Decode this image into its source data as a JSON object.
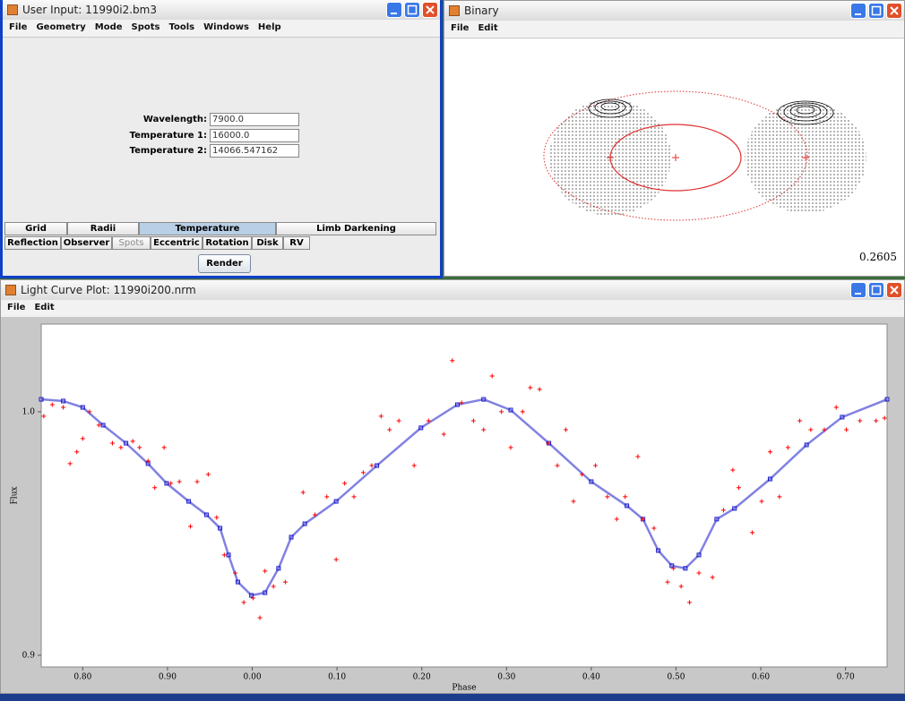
{
  "windows": {
    "user_input": {
      "title": "User Input: 11990i2.bm3",
      "menu": [
        "File",
        "Geometry",
        "Mode",
        "Spots",
        "Tools",
        "Windows",
        "Help"
      ],
      "fields": [
        {
          "label": "Wavelength:",
          "value": "7900.0"
        },
        {
          "label": "Temperature 1:",
          "value": "16000.0"
        },
        {
          "label": "Temperature 2:",
          "value": "14066.547162"
        }
      ],
      "tabs_row1": [
        "Grid",
        "Radii",
        "Temperature",
        "Limb Darkening"
      ],
      "tabs_row2": [
        "Reflection",
        "Observer",
        "Spots",
        "Eccentric",
        "Rotation",
        "Disk",
        "RV"
      ],
      "button": "Render"
    },
    "binary": {
      "title": "Binary",
      "menu": [
        "File",
        "Edit"
      ],
      "readout": 0.2605
    },
    "light_curve": {
      "title": "Light Curve Plot: 11990i200.nrm",
      "menu": [
        "File",
        "Edit"
      ]
    }
  },
  "chart_data": {
    "type": "scatter",
    "xlabel": "Phase",
    "ylabel": "Flux",
    "xlim": [
      0.751,
      1.749
    ],
    "ylim": [
      0.8952,
      1.036
    ],
    "xticks": [
      {
        "value": 0.8,
        "label": "0.80"
      },
      {
        "value": 0.9,
        "label": "0.90"
      },
      {
        "value": 1.0,
        "label": "0.00"
      },
      {
        "value": 1.1,
        "label": "0.10"
      },
      {
        "value": 1.2,
        "label": "0.20"
      },
      {
        "value": 1.3,
        "label": "0.30"
      },
      {
        "value": 1.4,
        "label": "0.40"
      },
      {
        "value": 1.5,
        "label": "0.50"
      },
      {
        "value": 1.6,
        "label": "0.60"
      },
      {
        "value": 1.7,
        "label": "0.70"
      }
    ],
    "yticks": [
      {
        "value": 0.9,
        "label": "0.9"
      },
      {
        "value": 1,
        "label": "1.0"
      }
    ],
    "series": [
      {
        "color": "#1a1acc",
        "marker": "square",
        "x": [
          0.751,
          0.777,
          0.8,
          0.824,
          0.851,
          0.877,
          0.899,
          0.925,
          0.946,
          0.962,
          0.972,
          0.983,
          0.999,
          1.015,
          1.031,
          1.046,
          1.062,
          1.099,
          1.147,
          1.199,
          1.242,
          1.273,
          1.305,
          1.35,
          1.4,
          1.442,
          1.461,
          1.479,
          1.495,
          1.511,
          1.527,
          1.548,
          1.569,
          1.611,
          1.654,
          1.696,
          1.749
        ],
        "values": [
          1.0051,
          1.0044,
          1.0018,
          0.9945,
          0.9871,
          0.9787,
          0.9706,
          0.9632,
          0.9577,
          0.9522,
          0.9412,
          0.9301,
          0.9246,
          0.9257,
          0.9357,
          0.9485,
          0.954,
          0.9632,
          0.9779,
          0.9934,
          1.0029,
          1.0051,
          1.0007,
          0.9871,
          0.9713,
          0.9614,
          0.9559,
          0.943,
          0.9368,
          0.9357,
          0.9412,
          0.9559,
          0.9603,
          0.9724,
          0.9864,
          0.9978,
          1.0051
        ]
      },
      {
        "color": "#ff0000",
        "marker": "plus",
        "x": [
          0.754,
          0.764,
          0.777,
          0.785,
          0.793,
          0.8,
          0.808,
          0.819,
          0.835,
          0.845,
          0.859,
          0.867,
          0.877,
          0.885,
          0.896,
          0.904,
          0.914,
          0.927,
          0.935,
          0.948,
          0.958,
          0.967,
          0.98,
          0.99,
          1.001,
          1.009,
          1.015,
          1.025,
          1.039,
          1.06,
          1.074,
          1.088,
          1.099,
          1.109,
          1.12,
          1.131,
          1.141,
          1.152,
          1.162,
          1.173,
          1.191,
          1.208,
          1.226,
          1.236,
          1.247,
          1.261,
          1.273,
          1.283,
          1.294,
          1.305,
          1.319,
          1.328,
          1.339,
          1.349,
          1.36,
          1.37,
          1.379,
          1.389,
          1.405,
          1.419,
          1.43,
          1.44,
          1.455,
          1.461,
          1.474,
          1.49,
          1.497,
          1.506,
          1.516,
          1.527,
          1.543,
          1.556,
          1.567,
          1.574,
          1.59,
          1.601,
          1.611,
          1.622,
          1.632,
          1.646,
          1.659,
          1.675,
          1.689,
          1.701,
          1.717,
          1.736,
          1.746
        ],
        "values": [
          0.9982,
          1.0029,
          1.0018,
          0.9787,
          0.9835,
          0.989,
          1.0,
          0.9945,
          0.9871,
          0.9853,
          0.9879,
          0.9853,
          0.9798,
          0.9688,
          0.9853,
          0.9706,
          0.9713,
          0.9529,
          0.9713,
          0.9743,
          0.9566,
          0.9412,
          0.9338,
          0.9217,
          0.9235,
          0.9154,
          0.9346,
          0.9283,
          0.9301,
          0.9669,
          0.9577,
          0.9651,
          0.9393,
          0.9706,
          0.9651,
          0.975,
          0.9779,
          0.9982,
          0.9926,
          0.9963,
          0.9779,
          0.9963,
          0.9908,
          1.021,
          1.0037,
          0.9963,
          0.9926,
          1.0147,
          1.0,
          0.9853,
          1.0,
          1.0099,
          1.0092,
          0.9871,
          0.9779,
          0.9926,
          0.9632,
          0.9743,
          0.9779,
          0.9651,
          0.9559,
          0.9651,
          0.9816,
          0.9559,
          0.9522,
          0.9301,
          0.9357,
          0.9283,
          0.9217,
          0.9338,
          0.932,
          0.9596,
          0.9761,
          0.9688,
          0.9504,
          0.9632,
          0.9835,
          0.9651,
          0.9853,
          0.9963,
          0.9926,
          0.9926,
          1.0018,
          0.9926,
          0.9963,
          0.9963,
          0.9974
        ]
      }
    ]
  }
}
